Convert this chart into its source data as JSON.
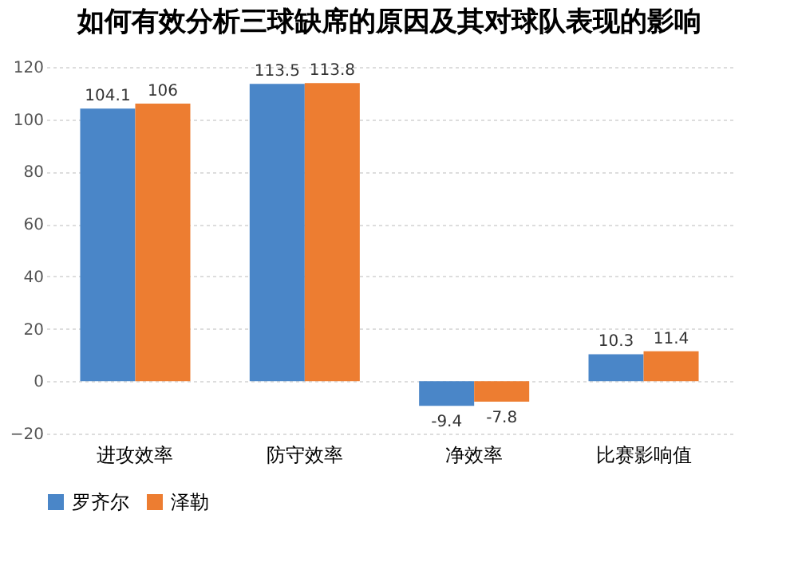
{
  "chart_data": {
    "type": "bar",
    "title": "如何有效分析三球缺席的原因及其对球队表现的影响",
    "categories": [
      "进攻效率",
      "防守效率",
      "净效率",
      "比赛影响值"
    ],
    "series": [
      {
        "name": "罗齐尔",
        "color": "#4a86c8",
        "values": [
          104.1,
          113.5,
          -9.4,
          10.3
        ]
      },
      {
        "name": "泽勒",
        "color": "#ed7d31",
        "values": [
          106,
          113.8,
          -7.8,
          11.4
        ]
      }
    ],
    "ylim": [
      -20,
      120
    ],
    "yticks": [
      -20,
      0,
      20,
      40,
      60,
      80,
      100,
      120
    ],
    "grid": "y",
    "legend": "bottom",
    "data_labels": true
  }
}
